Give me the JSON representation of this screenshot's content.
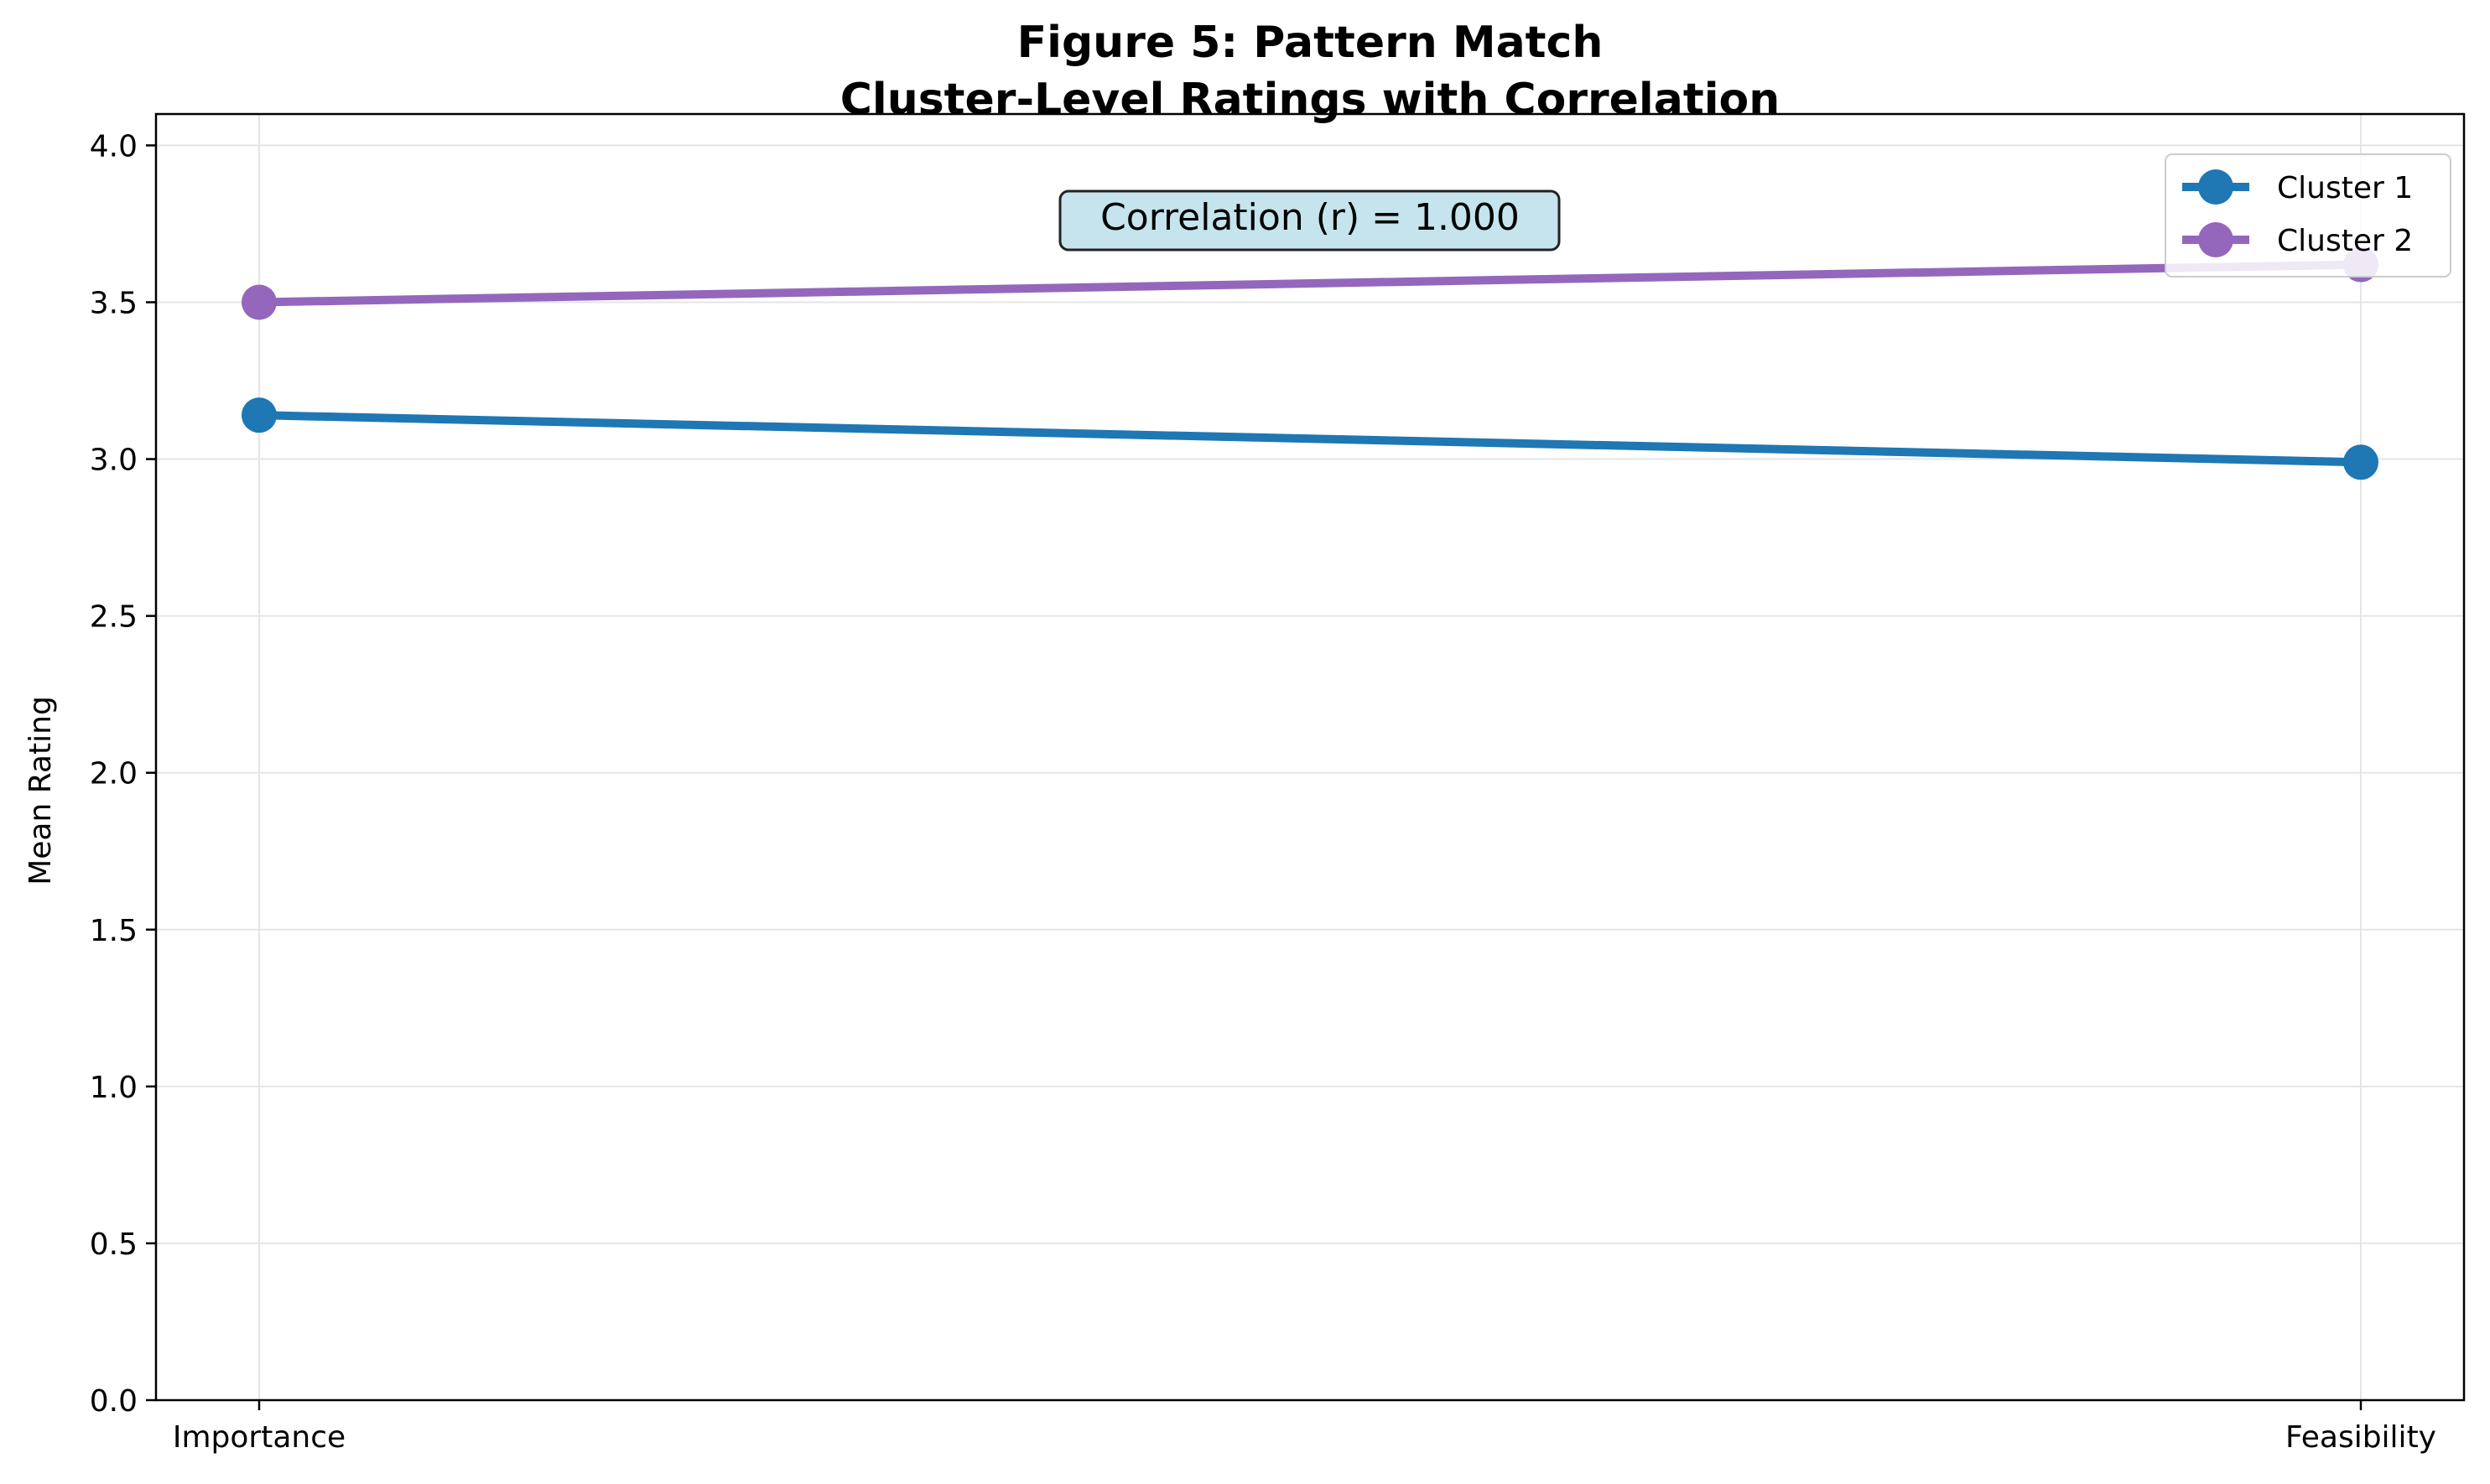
{
  "chart_data": {
    "type": "line",
    "title_line1": "Figure 5: Pattern Match",
    "title_line2": "Cluster-Level Ratings with Correlation",
    "xlabel": "",
    "ylabel": "Mean Rating",
    "categories": [
      "Importance",
      "Feasibility"
    ],
    "series": [
      {
        "name": "Cluster 1",
        "values": [
          3.14,
          2.99
        ],
        "color": "#1f77b4"
      },
      {
        "name": "Cluster 2",
        "values": [
          3.5,
          3.62
        ],
        "color": "#9467bd"
      }
    ],
    "ylim": [
      0,
      4.1
    ],
    "yticks": [
      "0.0",
      "0.5",
      "1.0",
      "1.5",
      "2.0",
      "2.5",
      "3.0",
      "3.5",
      "4.0"
    ],
    "grid": true,
    "legend_position": "top-right",
    "annotation": "Correlation (r) = 1.000",
    "annotation_box_color": "#add8e6"
  }
}
